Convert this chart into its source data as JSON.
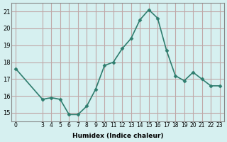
{
  "x": [
    0,
    3,
    4,
    5,
    6,
    7,
    8,
    9,
    10,
    11,
    12,
    13,
    14,
    15,
    16,
    17,
    18,
    19,
    20,
    21,
    22,
    23
  ],
  "y": [
    17.6,
    15.8,
    15.9,
    15.8,
    14.9,
    14.9,
    15.4,
    16.4,
    17.8,
    18.0,
    18.8,
    19.4,
    20.5,
    21.1,
    20.6,
    18.7,
    17.2,
    16.9,
    17.4,
    17.0,
    16.6,
    16.6
  ],
  "line_color": "#2e7d6e",
  "marker_color": "#2e7d6e",
  "bg_color": "#d6f0f0",
  "grid_color": "#c0a8a8",
  "xlabel": "Humidex (Indice chaleur)",
  "xlim": [
    -0.5,
    23.5
  ],
  "ylim": [
    14.5,
    21.5
  ],
  "yticks": [
    15,
    16,
    17,
    18,
    19,
    20,
    21
  ],
  "xtick_positions": [
    0,
    3,
    4,
    5,
    6,
    7,
    8,
    9,
    10,
    11,
    12,
    13,
    14,
    15,
    16,
    17,
    18,
    19,
    20,
    21,
    22,
    23
  ],
  "xtick_labels": [
    "0",
    "3",
    "4",
    "5",
    "6",
    "7",
    "8",
    "9",
    "10",
    "11",
    "12",
    "13",
    "14",
    "15",
    "16",
    "17",
    "18",
    "19",
    "20",
    "21",
    "22",
    "23"
  ]
}
